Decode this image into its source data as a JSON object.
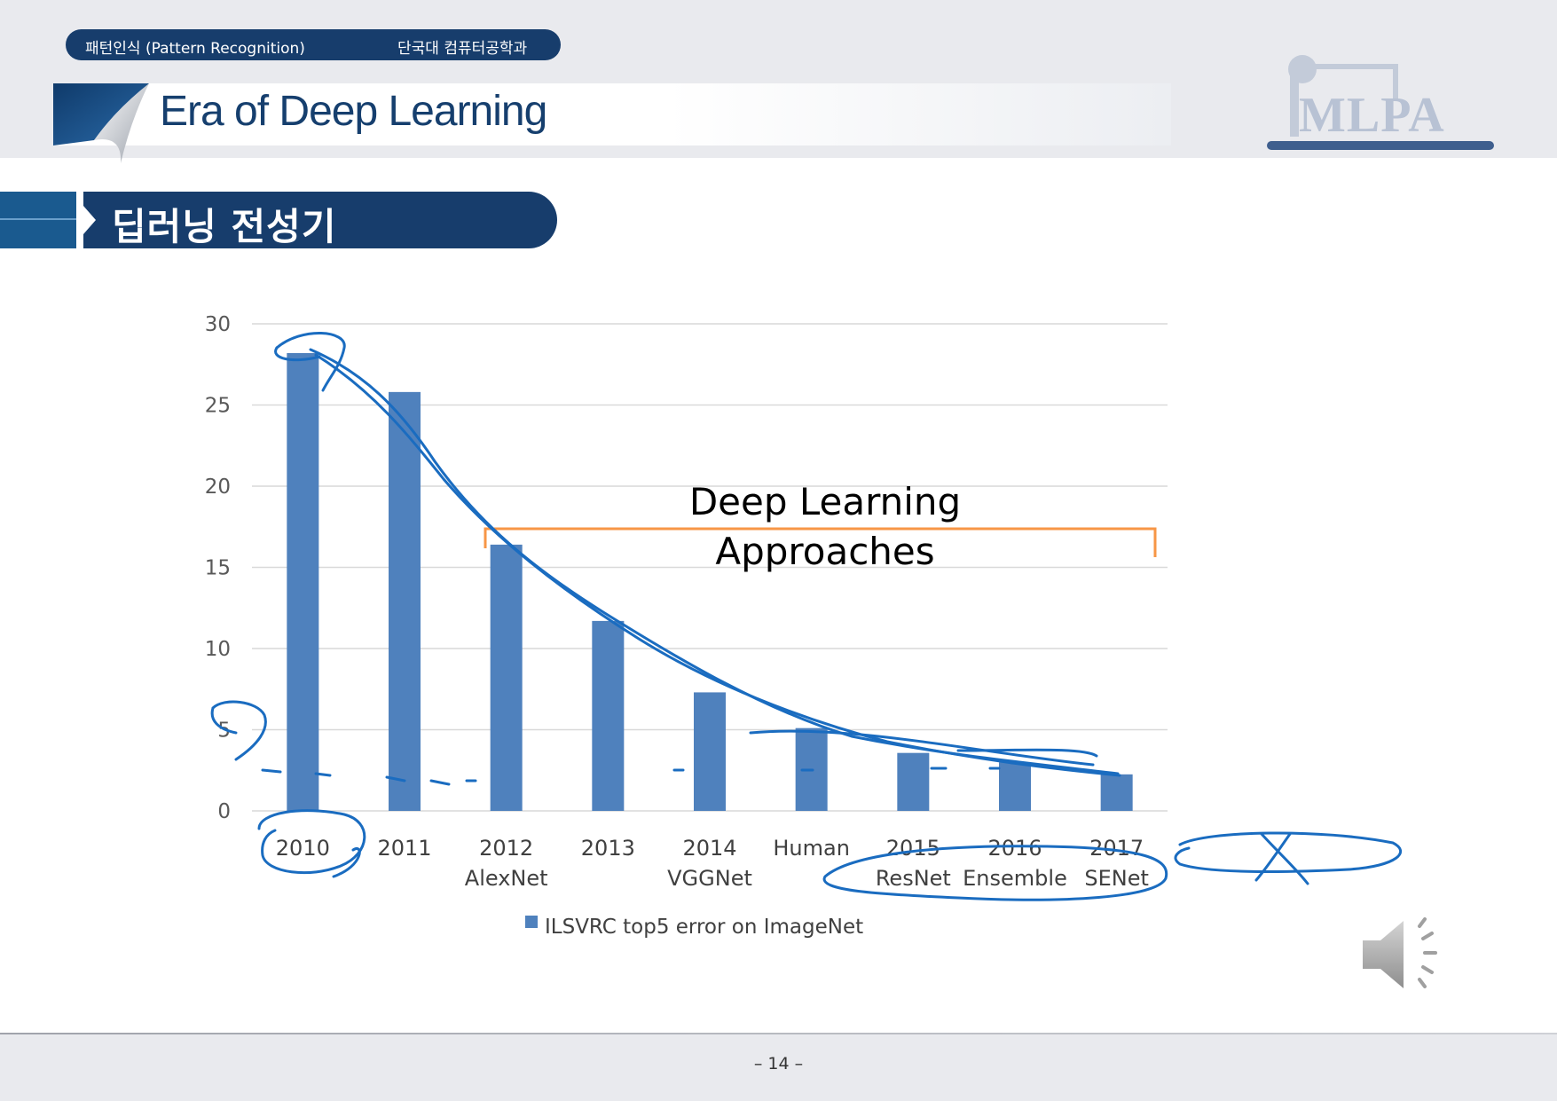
{
  "header": {
    "course": "패턴인식 (Pattern Recognition)",
    "department": "단국대 컴퓨터공학과",
    "title": "Era of Deep Learning",
    "logo_text": "MLPA"
  },
  "section": {
    "title": "딥러닝 전성기"
  },
  "annotation": {
    "bracket_label_line1": "Deep Learning",
    "bracket_label_line2": "Approaches"
  },
  "colors": {
    "bar": "#4f81bd",
    "bracket": "#f79646",
    "ink": "#1a6cc0",
    "navy": "#173d6c"
  },
  "chart_data": {
    "type": "bar",
    "categories": [
      "2010",
      "2011",
      "2012",
      "2013",
      "2014",
      "Human",
      "2015",
      "2016",
      "2017"
    ],
    "category_sublabels": [
      "",
      "",
      "AlexNet",
      "",
      "VGGNet",
      "",
      "ResNet",
      "Ensemble",
      "SENet"
    ],
    "series": [
      {
        "name": "ILSVRC top5 error on ImageNet",
        "values": [
          28.2,
          25.8,
          16.4,
          11.7,
          7.3,
          5.1,
          3.57,
          2.99,
          2.25
        ]
      }
    ],
    "ylim": [
      0,
      30
    ],
    "yticks": [
      0,
      5,
      10,
      15,
      20,
      25,
      30
    ],
    "grid": true,
    "legend_position": "bottom"
  },
  "footer": {
    "page": "– 14 –"
  },
  "icons": {
    "speaker": "speaker-icon"
  }
}
